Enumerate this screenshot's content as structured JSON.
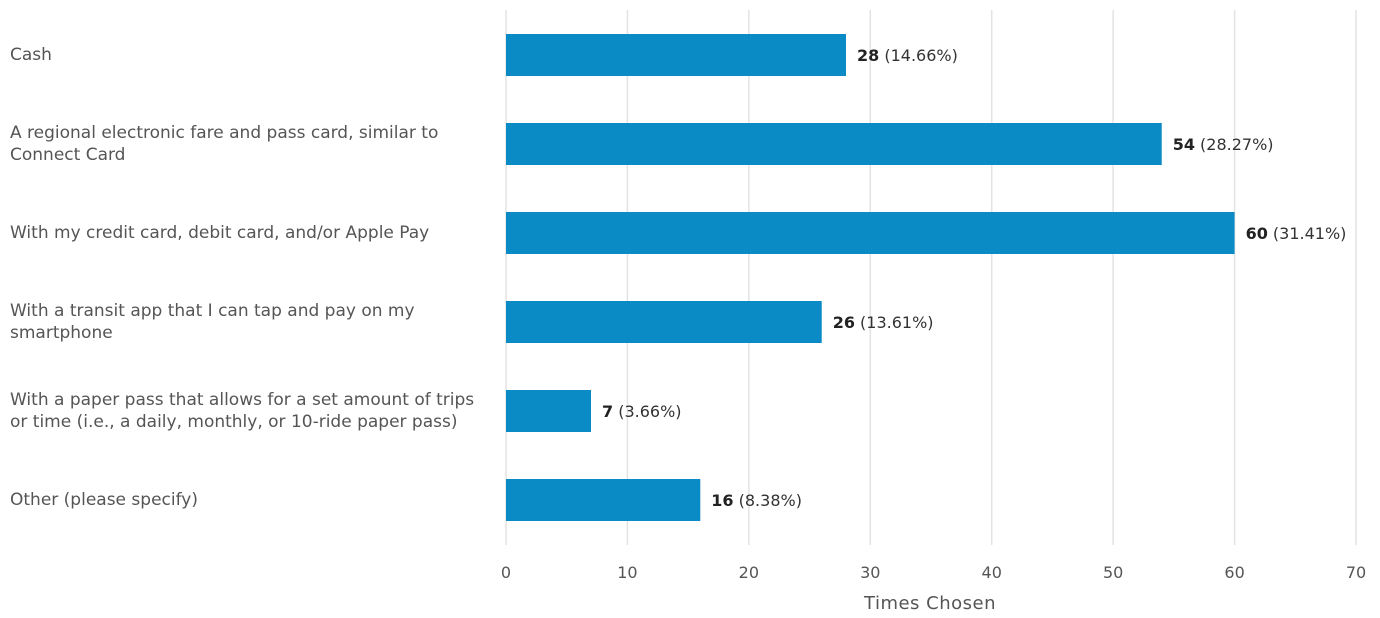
{
  "chart_data": {
    "type": "bar",
    "orientation": "horizontal",
    "categories": [
      "Cash",
      "A regional electronic fare and pass card, similar to Connect Card",
      "With my credit card, debit card, and/or Apple Pay",
      "With a transit app that I can tap and pay on my smartphone",
      "With a paper pass that allows for a set amount of trips or time (i.e., a daily, monthly, or 10-ride paper pass)",
      "Other (please specify)"
    ],
    "values": [
      28,
      54,
      60,
      26,
      7,
      16
    ],
    "percent_labels": [
      "(14.66%)",
      "(28.27%)",
      "(31.41%)",
      "(13.61%)",
      "(3.66%)",
      "(8.38%)"
    ],
    "xlabel": "Times Chosen",
    "xlim": [
      0,
      70
    ],
    "xticks": [
      0,
      10,
      20,
      30,
      40,
      50,
      60,
      70
    ],
    "grid": "vertical",
    "bar_color": "#0a8bc6",
    "grid_color": "#e3e3e3"
  }
}
